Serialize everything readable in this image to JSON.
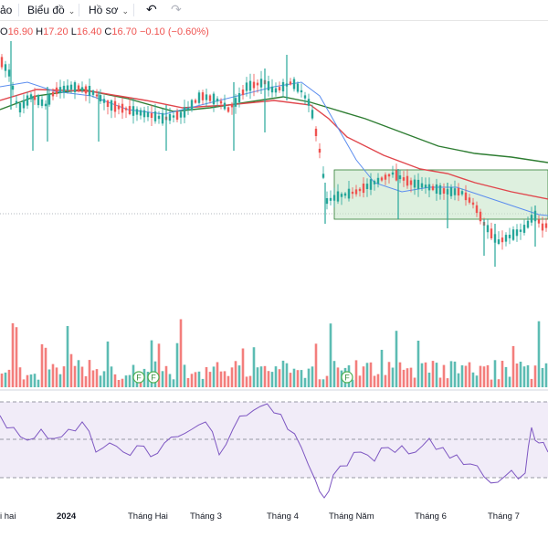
{
  "toolbar": {
    "first_item": "ảo",
    "chart_menu": "Biểu đồ",
    "profile_menu": "Hồ sơ",
    "chevron": "⌄",
    "undo_icon": "↶",
    "redo_icon": "↷"
  },
  "legend": {
    "open_key": "O",
    "open_val": "16.90",
    "high_key": "H",
    "high_val": "17.20",
    "low_key": "L",
    "low_val": "16.40",
    "close_key": "C",
    "close_val": "16.70",
    "change": "−0.10 (−0.60%)"
  },
  "markers": {
    "label": "F",
    "dates": [
      "Tháng Hai",
      "Tháng Hai",
      "Tháng Năm"
    ]
  },
  "chart_data": {
    "type": "candlestick",
    "x_labels": [
      "i hai",
      "2024",
      "Tháng Hai",
      "Tháng 3",
      "Tháng 4",
      "Tháng Năm",
      "Tháng 6",
      "Tháng 7"
    ],
    "x_labels_bold": [
      "2024"
    ],
    "colors": {
      "up": "#26a69a",
      "down": "#ef5350",
      "ma_short": "#5b8def",
      "ma_mid": "#e0464c",
      "ma_long": "#2e7d32",
      "rsi": "#7e57c2",
      "rsi_band": "#ede7f6",
      "highlight_box": "#c8e6c9"
    },
    "annotations": [
      "consolidation rectangle (Tháng Năm – Tháng 7)"
    ],
    "grid": false
  }
}
